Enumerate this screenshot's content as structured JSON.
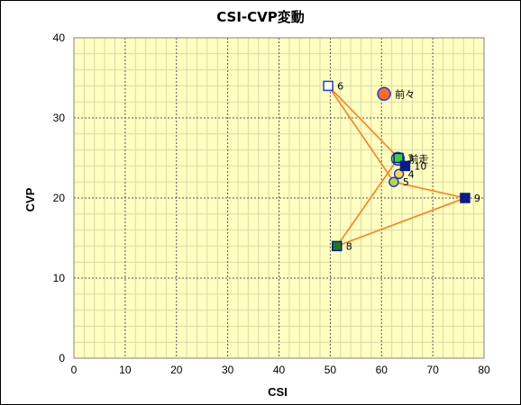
{
  "chart_data": {
    "type": "scatter",
    "title": "CSI-CVP変動",
    "xlabel": "CSI",
    "ylabel": "CVP",
    "xlim": [
      0,
      80
    ],
    "ylim": [
      0,
      40
    ],
    "xticks": [
      0,
      10,
      20,
      30,
      40,
      50,
      60,
      70,
      80
    ],
    "yticks": [
      0,
      10,
      20,
      30,
      40
    ],
    "grid": true,
    "colors": {
      "plot_bg": "#ffffc0",
      "minor_grid": "#d9d9a8",
      "major_grid": "#555555",
      "line": "#ff7f1e",
      "navy": "#0a1a8c",
      "green": "#1f7a1f",
      "orange_fill": "#ff6a2a",
      "circle_fill": "#b8d84a",
      "bright_green": "#3ad23a",
      "circle_edge": "#2040d0",
      "yellow_fill": "#ffd54a"
    },
    "points": [
      {
        "label": "前々",
        "x": 60.5,
        "y": 33,
        "marker": "circle",
        "fill": "orange_fill",
        "stroke": "circle_edge",
        "size": 7
      },
      {
        "label": "前走",
        "x": 63.2,
        "y": 24.9,
        "marker": "circle",
        "fill": "circle_fill",
        "stroke": "circle_edge",
        "size": 7
      },
      {
        "label": "3",
        "x": 63.3,
        "y": 25,
        "marker": "square",
        "fill": "bright_green",
        "stroke": "navy",
        "size": 5
      },
      {
        "label": "4",
        "x": 63.4,
        "y": 23,
        "marker": "circle",
        "fill": "yellow_fill",
        "stroke": "circle_edge",
        "size": 5
      },
      {
        "label": "5",
        "x": 62.4,
        "y": 22,
        "marker": "circle",
        "fill": "circle_fill",
        "stroke": "circle_edge",
        "size": 5
      },
      {
        "label": "6",
        "x": 49.6,
        "y": 34,
        "marker": "square",
        "fill": "#ffffff",
        "stroke": "circle_edge",
        "size": 5
      },
      {
        "label": "8",
        "x": 51.3,
        "y": 14,
        "marker": "square",
        "fill": "green",
        "stroke": "navy",
        "size": 5
      },
      {
        "label": "9",
        "x": 76.3,
        "y": 20,
        "marker": "square",
        "fill": "navy",
        "stroke": "navy",
        "size": 5
      },
      {
        "label": "10",
        "x": 64.6,
        "y": 24,
        "marker": "square",
        "fill": "navy",
        "stroke": "navy",
        "size": 5
      }
    ],
    "path": [
      [
        49.6,
        34
      ],
      [
        62.4,
        22
      ],
      [
        76.3,
        20
      ],
      [
        51.3,
        14
      ],
      [
        63.3,
        25
      ],
      [
        49.6,
        34
      ],
      [
        63.3,
        25
      ],
      [
        64.6,
        24
      ]
    ]
  }
}
